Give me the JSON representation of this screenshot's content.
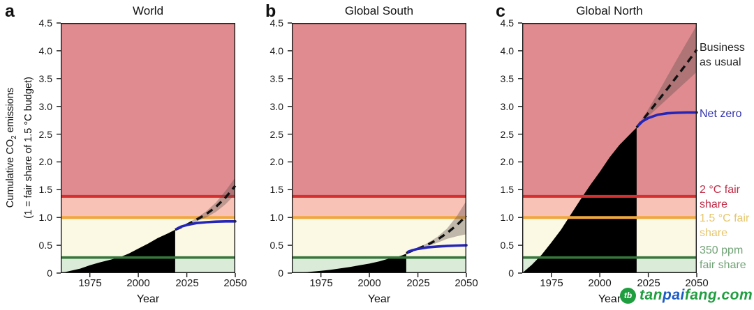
{
  "figure": {
    "description": "Cumulative CO2 emissions relative to fair share of 1.5 C budget, three panels"
  },
  "axes": {
    "x_label": "Year",
    "y_label_part1": "Cumulative CO",
    "y_label_sub": "2",
    "y_label_part2": " emissions",
    "y_label_line2": "(1 = fair share of 1.5 °C budget)",
    "x_ticks": [
      {
        "v": 1975,
        "label": "1975"
      },
      {
        "v": 2000,
        "label": "2000"
      },
      {
        "v": 2025,
        "label": "2025"
      },
      {
        "v": 2050,
        "label": "2050"
      }
    ],
    "y_ticks": [
      {
        "v": 4.5,
        "label": "4.5"
      },
      {
        "v": 4.0,
        "label": "4.0"
      },
      {
        "v": 3.5,
        "label": "3.5"
      },
      {
        "v": 3.0,
        "label": "3.0"
      },
      {
        "v": 2.5,
        "label": "2.5"
      },
      {
        "v": 2.0,
        "label": "2.0"
      },
      {
        "v": 1.5,
        "label": "1.5"
      },
      {
        "v": 1.0,
        "label": "1.0"
      },
      {
        "v": 0.5,
        "label": "0.5"
      },
      {
        "v": 0,
        "label": "0"
      }
    ]
  },
  "colors": {
    "band_rose": "#e08b8f",
    "band_pink": "#f8c3b6",
    "band_cream": "#fbf8e3",
    "band_green": "#daecd8",
    "line_2c": "#d62f2f",
    "line_15c": "#efa83f",
    "line_350": "#37763c",
    "net_zero": "#2525b8",
    "history": "#000000",
    "bau_line": "#111111",
    "bau_band": "rgba(95,80,80,0.38)",
    "spine": "#1a1a1a"
  },
  "annotations": {
    "business_as_usual": {
      "lines": [
        "Business",
        "as usual"
      ],
      "color": "#262626"
    },
    "net_zero": {
      "lines": [
        "Net zero",
        ""
      ],
      "color": "#3434ae"
    },
    "two_c_fair_share": {
      "lines": [
        "2 °C fair",
        "share"
      ],
      "color": "#bf2b45"
    },
    "one_five_c_fair_share": {
      "lines": [
        "1.5 °C fair",
        "share"
      ],
      "color": "#e6c66d"
    },
    "ppm350_fair_share": {
      "lines": [
        "350 ppm",
        "fair share"
      ],
      "color": "#72a377"
    }
  },
  "watermark": {
    "logo_glyph": "tb",
    "logo_color": "#1f9e3f",
    "parts": [
      {
        "text": "tan",
        "color": "#1f9e3f"
      },
      {
        "text": "pai",
        "color": "#1d5bc4"
      },
      {
        "text": "fang.com",
        "color": "#1f9e3f"
      }
    ]
  },
  "chart_data": [
    {
      "type": "area",
      "letter": "a",
      "title": "World",
      "xlabel": "Year",
      "ylabel": "Cumulative CO2 emissions (1 = fair share of 1.5 C budget)",
      "xlim": [
        1960,
        2050
      ],
      "ylim": [
        0,
        4.5
      ],
      "grid": false,
      "thresholds": {
        "two_c_fair_share": 1.38,
        "one_five_c_fair_share": 1.0,
        "ppm350_fair_share": 0.28
      },
      "series": [
        {
          "name": "historical-cumulative-emissions",
          "style": "filled-area",
          "x": [
            1960,
            1965,
            1970,
            1975,
            1980,
            1985,
            1990,
            1995,
            2000,
            2005,
            2010,
            2015,
            2019
          ],
          "y": [
            0.0,
            0.04,
            0.08,
            0.14,
            0.19,
            0.235,
            0.28,
            0.35,
            0.44,
            0.53,
            0.63,
            0.71,
            0.78
          ]
        },
        {
          "name": "business-as-usual",
          "style": "dashed-line-with-uncertainty-band",
          "x": [
            2019,
            2025,
            2030,
            2035,
            2040,
            2045,
            2050
          ],
          "y": [
            0.78,
            0.87,
            0.96,
            1.06,
            1.19,
            1.36,
            1.57
          ],
          "upper": [
            0.78,
            0.89,
            0.99,
            1.11,
            1.27,
            1.48,
            1.72
          ],
          "lower": [
            0.78,
            0.855,
            0.93,
            1.0,
            1.1,
            1.24,
            1.42
          ]
        },
        {
          "name": "net-zero",
          "style": "line",
          "x": [
            2020,
            2022,
            2025,
            2030,
            2035,
            2040,
            2045,
            2050
          ],
          "y": [
            0.8,
            0.835,
            0.865,
            0.9,
            0.915,
            0.925,
            0.93,
            0.93
          ]
        }
      ]
    },
    {
      "type": "area",
      "letter": "b",
      "title": "Global South",
      "xlabel": "Year",
      "ylabel": "Cumulative CO2 emissions (1 = fair share of 1.5 C budget)",
      "xlim": [
        1960,
        2050
      ],
      "ylim": [
        0,
        4.5
      ],
      "grid": false,
      "thresholds": {
        "two_c_fair_share": 1.38,
        "one_five_c_fair_share": 1.0,
        "ppm350_fair_share": 0.28
      },
      "series": [
        {
          "name": "historical-cumulative-emissions",
          "style": "filled-area",
          "x": [
            1960,
            1965,
            1970,
            1975,
            1980,
            1985,
            1990,
            1995,
            2000,
            2005,
            2010,
            2015,
            2017,
            2019
          ],
          "y": [
            0.0,
            0.01,
            0.025,
            0.04,
            0.06,
            0.085,
            0.11,
            0.14,
            0.17,
            0.21,
            0.26,
            0.3,
            0.32,
            0.35
          ]
        },
        {
          "name": "business-as-usual",
          "style": "dashed-line-with-uncertainty-band",
          "x": [
            2019,
            2025,
            2030,
            2035,
            2040,
            2045,
            2050
          ],
          "y": [
            0.36,
            0.44,
            0.51,
            0.6,
            0.72,
            0.86,
            1.03
          ],
          "upper": [
            0.36,
            0.455,
            0.54,
            0.65,
            0.8,
            1.02,
            1.3
          ],
          "lower": [
            0.36,
            0.43,
            0.48,
            0.545,
            0.615,
            0.66,
            0.7
          ]
        },
        {
          "name": "net-zero",
          "style": "line",
          "x": [
            2020,
            2022,
            2025,
            2030,
            2035,
            2040,
            2045,
            2050
          ],
          "y": [
            0.385,
            0.41,
            0.435,
            0.462,
            0.478,
            0.488,
            0.495,
            0.5
          ]
        }
      ]
    },
    {
      "type": "area",
      "letter": "c",
      "title": "Global North",
      "xlabel": "Year",
      "ylabel": "Cumulative CO2 emissions (1 = fair share of 1.5 C budget)",
      "xlim": [
        1960,
        2050
      ],
      "ylim": [
        0,
        4.5
      ],
      "grid": false,
      "legend_position": "right-outside",
      "thresholds": {
        "two_c_fair_share": 1.38,
        "one_five_c_fair_share": 1.0,
        "ppm350_fair_share": 0.28
      },
      "series": [
        {
          "name": "historical-cumulative-emissions",
          "style": "filled-area",
          "x": [
            1960,
            1965,
            1970,
            1975,
            1980,
            1985,
            1990,
            1995,
            2000,
            2005,
            2010,
            2015,
            2019
          ],
          "y": [
            0.0,
            0.15,
            0.33,
            0.55,
            0.78,
            1.05,
            1.32,
            1.58,
            1.82,
            2.08,
            2.3,
            2.48,
            2.62
          ]
        },
        {
          "name": "business-as-usual",
          "style": "dashed-line-with-uncertainty-band",
          "x": [
            2019,
            2025,
            2030,
            2035,
            2040,
            2045,
            2050
          ],
          "y": [
            2.62,
            2.88,
            3.1,
            3.32,
            3.55,
            3.78,
            4.02
          ],
          "upper": [
            2.62,
            2.95,
            3.24,
            3.55,
            3.86,
            4.16,
            4.46
          ],
          "lower": [
            2.62,
            2.82,
            2.98,
            3.14,
            3.3,
            3.46,
            3.62
          ]
        },
        {
          "name": "net-zero",
          "style": "line",
          "x": [
            2020,
            2022,
            2025,
            2030,
            2035,
            2040,
            2045,
            2050
          ],
          "y": [
            2.66,
            2.73,
            2.79,
            2.85,
            2.875,
            2.885,
            2.89,
            2.89
          ]
        }
      ]
    }
  ]
}
